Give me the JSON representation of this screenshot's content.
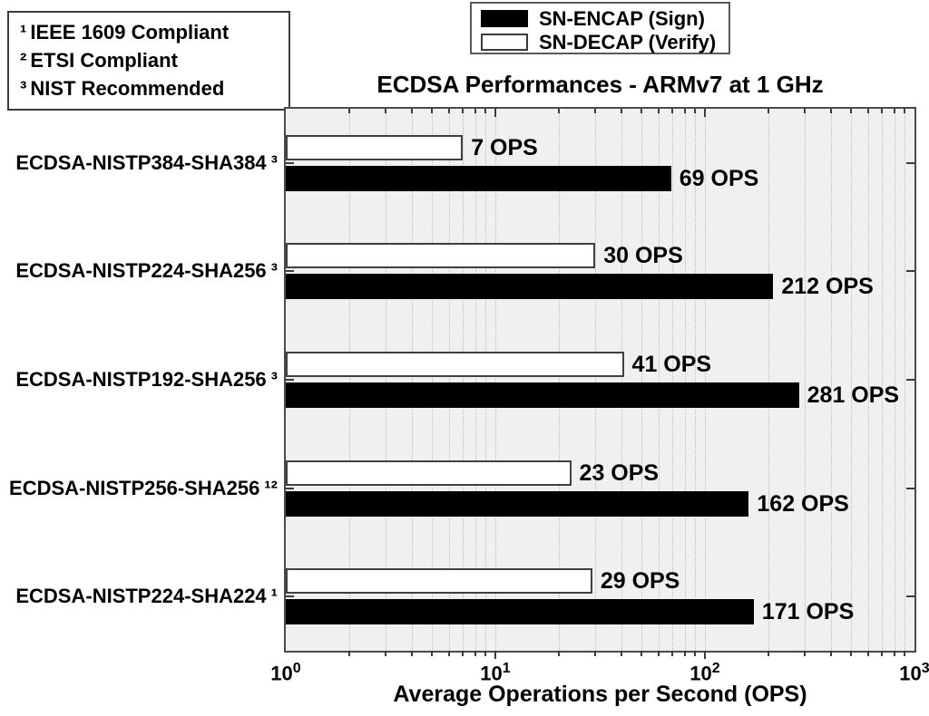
{
  "footnote_box": {
    "items": [
      {
        "marker": "¹",
        "text": "IEEE 1609 Compliant"
      },
      {
        "marker": "²",
        "text": "ETSI Compliant"
      },
      {
        "marker": "³",
        "text": "NIST Recommended"
      }
    ]
  },
  "legend": {
    "position": "top-center",
    "entries": [
      {
        "key": "sign",
        "label": "SN-ENCAP (Sign)",
        "swatch_fill": "#000000"
      },
      {
        "key": "verify",
        "label": "SN-DECAP (Verify)",
        "swatch_fill": "#ffffff"
      }
    ]
  },
  "chart_data": {
    "type": "bar",
    "orientation": "horizontal",
    "title": "ECDSA Performances - ARMv7 at 1 GHz",
    "xlabel": "Average Operations per Second (OPS)",
    "x_scale": "log10",
    "xlim": [
      1,
      1000
    ],
    "x_tick_base": "10",
    "x_tick_exponents": [
      0,
      1,
      2,
      3
    ],
    "grid": "vertical-dotted-log-minor",
    "plot_bg": "#f0f0f0",
    "bar_colors": {
      "sign": "#000000",
      "verify": "#ffffff"
    },
    "value_suffix": " OPS",
    "rows": [
      {
        "category": "ECDSA-NISTP384-SHA384",
        "footnote_marker": "³",
        "verify": 7,
        "sign": 69
      },
      {
        "category": "ECDSA-NISTP224-SHA256",
        "footnote_marker": "³",
        "verify": 30,
        "sign": 212
      },
      {
        "category": "ECDSA-NISTP192-SHA256",
        "footnote_marker": "³",
        "verify": 41,
        "sign": 281
      },
      {
        "category": "ECDSA-NISTP256-SHA256",
        "footnote_marker": "¹²",
        "verify": 23,
        "sign": 162
      },
      {
        "category": "ECDSA-NISTP224-SHA224",
        "footnote_marker": "¹",
        "verify": 29,
        "sign": 171
      }
    ],
    "series": [
      {
        "name": "SN-ENCAP (Sign)",
        "values": [
          69,
          212,
          281,
          162,
          171
        ]
      },
      {
        "name": "SN-DECAP (Verify)",
        "values": [
          7,
          30,
          41,
          23,
          29
        ]
      }
    ]
  }
}
